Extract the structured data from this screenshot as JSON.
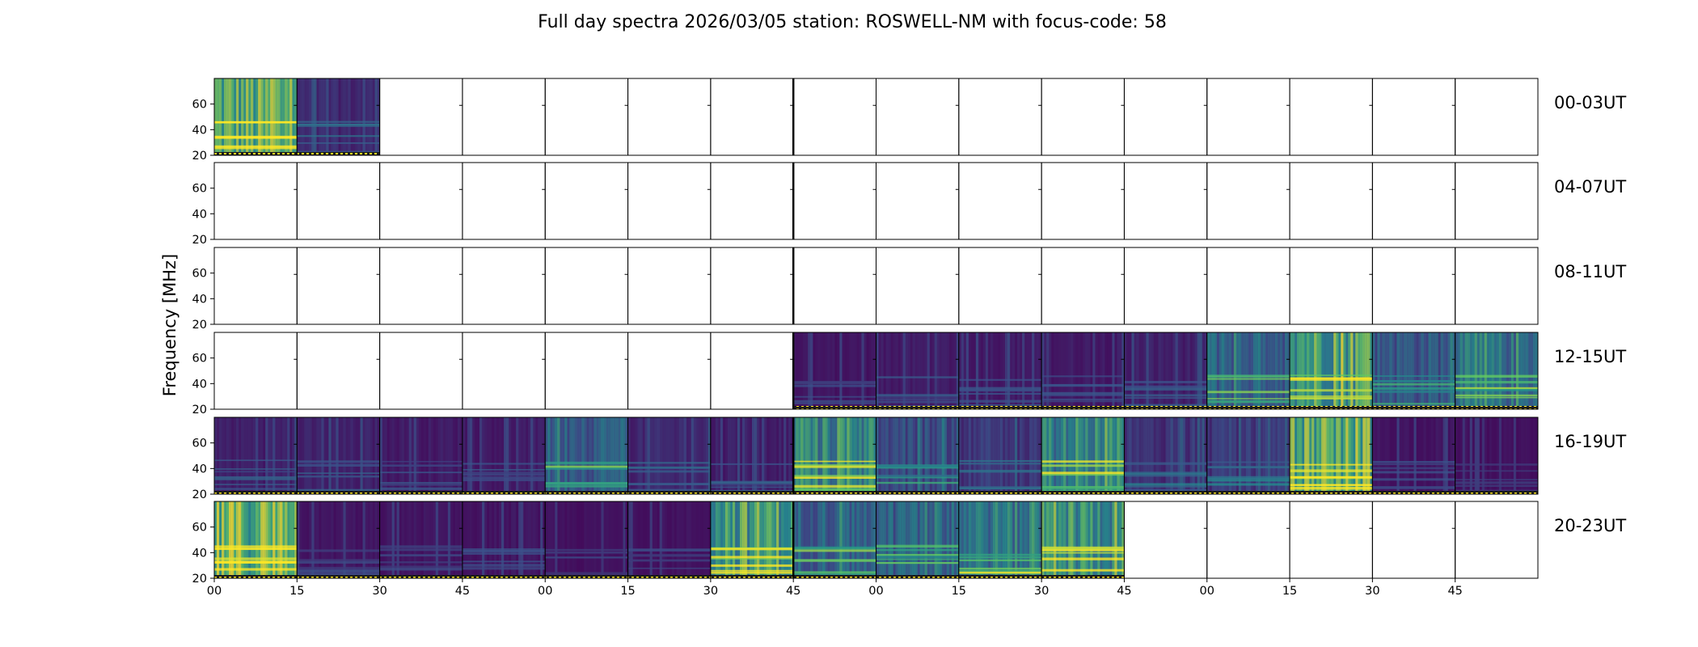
{
  "chart_data": {
    "type": "heatmap",
    "title": "Full day spectra 2026/03/05 station: ROSWELL-NM with focus-code: 58",
    "ylabel": "Frequency [MHz]",
    "xlabel": "",
    "yticks": [
      "20",
      "40",
      "60"
    ],
    "ylim": [
      20,
      80
    ],
    "xticks": [
      "00",
      "15",
      "30",
      "45",
      "00",
      "15",
      "30",
      "45",
      "00",
      "15",
      "30",
      "45",
      "00",
      "15",
      "30",
      "45"
    ],
    "panels_per_row": 16,
    "rows": [
      {
        "label": "00-03UT",
        "panels": [
          0.75,
          0.15,
          null,
          null,
          null,
          null,
          null,
          null,
          null,
          null,
          null,
          null,
          null,
          null,
          null,
          null
        ]
      },
      {
        "label": "04-07UT",
        "panels": [
          null,
          null,
          null,
          null,
          null,
          null,
          null,
          null,
          null,
          null,
          null,
          null,
          null,
          null,
          null,
          null
        ]
      },
      {
        "label": "08-11UT",
        "panels": [
          null,
          null,
          null,
          null,
          null,
          null,
          null,
          null,
          null,
          null,
          null,
          null,
          null,
          null,
          null,
          null
        ]
      },
      {
        "label": "12-15UT",
        "panels": [
          null,
          null,
          null,
          null,
          null,
          null,
          null,
          0.08,
          0.1,
          0.1,
          0.1,
          0.12,
          0.4,
          0.72,
          0.35,
          0.45
        ]
      },
      {
        "label": "16-19UT",
        "panels": [
          0.12,
          0.12,
          0.1,
          0.1,
          0.38,
          0.15,
          0.12,
          0.55,
          0.3,
          0.2,
          0.55,
          0.18,
          0.2,
          0.78,
          0.08,
          0.06
        ]
      },
      {
        "label": "20-23UT",
        "panels": [
          0.82,
          0.08,
          0.08,
          0.08,
          0.06,
          0.07,
          0.7,
          0.4,
          0.38,
          0.5,
          0.62,
          null,
          null,
          null,
          null,
          null
        ]
      }
    ],
    "colormap": [
      "#440154",
      "#3b528b",
      "#21918c",
      "#5ec962",
      "#fde725"
    ]
  }
}
